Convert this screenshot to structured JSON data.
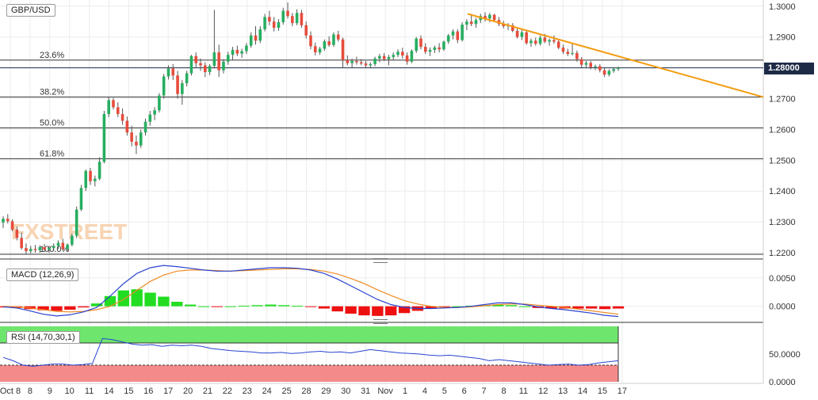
{
  "chart_data": {
    "type": "candlestick",
    "symbol": "GBP/USD",
    "current_price_label": "1.28000",
    "x_labels": [
      "Oct 8",
      "8",
      "9",
      "10",
      "11",
      "14",
      "15",
      "16",
      "17",
      "20",
      "21",
      "22",
      "23",
      "24",
      "25",
      "28",
      "29",
      "30",
      "31",
      "Nov",
      "1",
      "4",
      "5",
      "6",
      "7",
      "8",
      "11",
      "12",
      "13",
      "14",
      "15",
      "17"
    ],
    "price_axis": {
      "ticks": [
        "1.3000",
        "1.2900",
        "1.2800",
        "1.2700",
        "1.2600",
        "1.2500",
        "1.2400",
        "1.2300",
        "1.2200"
      ],
      "range": [
        1.2182,
        1.302
      ]
    },
    "fibonacci": [
      {
        "label": "23.6%",
        "price": 1.2825
      },
      {
        "label": "38.2%",
        "price": 1.2705
      },
      {
        "label": "50.0%",
        "price": 1.2605
      },
      {
        "label": "61.8%",
        "price": 1.2505
      },
      {
        "label": "100.0%",
        "price": 1.2195
      }
    ],
    "trendline": {
      "start_price": 1.2975,
      "end_price": 1.2705,
      "color": "#f39c12"
    },
    "candles": [
      [
        1.2298,
        1.2318,
        1.228,
        1.231
      ],
      [
        1.231,
        1.2325,
        1.2295,
        1.2302
      ],
      [
        1.2302,
        1.2308,
        1.227,
        1.2275
      ],
      [
        1.2275,
        1.2285,
        1.224,
        1.2248
      ],
      [
        1.2248,
        1.2265,
        1.221,
        1.2215
      ],
      [
        1.2215,
        1.223,
        1.2195,
        1.2205
      ],
      [
        1.2205,
        1.2222,
        1.2198,
        1.2212
      ],
      [
        1.2212,
        1.2225,
        1.22,
        1.2208
      ],
      [
        1.2208,
        1.2224,
        1.22,
        1.2218
      ],
      [
        1.2218,
        1.2228,
        1.2202,
        1.221
      ],
      [
        1.221,
        1.2222,
        1.22,
        1.2215
      ],
      [
        1.2215,
        1.223,
        1.2205,
        1.2222
      ],
      [
        1.2222,
        1.224,
        1.2212,
        1.2232
      ],
      [
        1.2232,
        1.2245,
        1.2205,
        1.2212
      ],
      [
        1.2212,
        1.223,
        1.2204,
        1.2226
      ],
      [
        1.2226,
        1.2262,
        1.222,
        1.2255
      ],
      [
        1.2255,
        1.235,
        1.2248,
        1.234
      ],
      [
        1.234,
        1.242,
        1.2335,
        1.241
      ],
      [
        1.241,
        1.247,
        1.24,
        1.2465
      ],
      [
        1.2465,
        1.2475,
        1.242,
        1.2432
      ],
      [
        1.2432,
        1.245,
        1.2415,
        1.244
      ],
      [
        1.244,
        1.251,
        1.2435,
        1.2495
      ],
      [
        1.2495,
        1.266,
        1.249,
        1.265
      ],
      [
        1.265,
        1.2705,
        1.264,
        1.2695
      ],
      [
        1.2695,
        1.2702,
        1.2665,
        1.2672
      ],
      [
        1.2672,
        1.2688,
        1.264,
        1.265
      ],
      [
        1.265,
        1.2668,
        1.2615,
        1.2628
      ],
      [
        1.2628,
        1.2642,
        1.258,
        1.259
      ],
      [
        1.259,
        1.2612,
        1.2545,
        1.256
      ],
      [
        1.256,
        1.258,
        1.252,
        1.2548
      ],
      [
        1.2548,
        1.26,
        1.254,
        1.259
      ],
      [
        1.259,
        1.2635,
        1.258,
        1.2625
      ],
      [
        1.2625,
        1.266,
        1.2612,
        1.2648
      ],
      [
        1.2648,
        1.2672,
        1.263,
        1.2662
      ],
      [
        1.2662,
        1.2718,
        1.2655,
        1.271
      ],
      [
        1.271,
        1.278,
        1.27,
        1.2772
      ],
      [
        1.2772,
        1.2808,
        1.2762,
        1.2798
      ],
      [
        1.2798,
        1.2812,
        1.276,
        1.2775
      ],
      [
        1.2775,
        1.279,
        1.27,
        1.2715
      ],
      [
        1.2715,
        1.276,
        1.268,
        1.275
      ],
      [
        1.275,
        1.279,
        1.274,
        1.2782
      ],
      [
        1.2782,
        1.2842,
        1.2775,
        1.2838
      ],
      [
        1.2838,
        1.285,
        1.28,
        1.2815
      ],
      [
        1.2815,
        1.283,
        1.279,
        1.2808
      ],
      [
        1.2808,
        1.2818,
        1.277,
        1.2786
      ],
      [
        1.2786,
        1.2812,
        1.2776,
        1.2806
      ],
      [
        1.2806,
        1.2988,
        1.28,
        1.285
      ],
      [
        1.285,
        1.2875,
        1.277,
        1.2792
      ],
      [
        1.2792,
        1.2828,
        1.2782,
        1.282
      ],
      [
        1.282,
        1.2852,
        1.281,
        1.2842
      ],
      [
        1.2842,
        1.2868,
        1.2824,
        1.2858
      ],
      [
        1.2858,
        1.2872,
        1.2838,
        1.2846
      ],
      [
        1.2846,
        1.2862,
        1.2832,
        1.2854
      ],
      [
        1.2854,
        1.288,
        1.2845,
        1.2872
      ],
      [
        1.2872,
        1.2915,
        1.2865,
        1.2905
      ],
      [
        1.2905,
        1.2935,
        1.2875,
        1.2888
      ],
      [
        1.2888,
        1.2935,
        1.288,
        1.2925
      ],
      [
        1.2925,
        1.2975,
        1.2918,
        1.2965
      ],
      [
        1.2965,
        1.2985,
        1.2938,
        1.295
      ],
      [
        1.295,
        1.2965,
        1.2918,
        1.293
      ],
      [
        1.293,
        1.2958,
        1.292,
        1.2948
      ],
      [
        1.2948,
        1.2995,
        1.294,
        1.2985
      ],
      [
        1.2985,
        1.3012,
        1.296,
        1.2968
      ],
      [
        1.2968,
        1.2978,
        1.2935,
        1.2945
      ],
      [
        1.2945,
        1.299,
        1.2938,
        1.2978
      ],
      [
        1.2978,
        1.2988,
        1.293,
        1.2938
      ],
      [
        1.2938,
        1.295,
        1.2895,
        1.2905
      ],
      [
        1.2905,
        1.2918,
        1.286,
        1.287
      ],
      [
        1.287,
        1.2882,
        1.284,
        1.285
      ],
      [
        1.285,
        1.2868,
        1.2842,
        1.2862
      ],
      [
        1.2862,
        1.2892,
        1.2855,
        1.2886
      ],
      [
        1.2886,
        1.2902,
        1.2868,
        1.2874
      ],
      [
        1.2874,
        1.2915,
        1.2868,
        1.2908
      ],
      [
        1.2908,
        1.292,
        1.2885,
        1.2892
      ],
      [
        1.2892,
        1.2898,
        1.28,
        1.2825
      ],
      [
        1.2825,
        1.284,
        1.2808,
        1.2815
      ],
      [
        1.2815,
        1.283,
        1.28,
        1.2822
      ],
      [
        1.2822,
        1.2836,
        1.281,
        1.2818
      ],
      [
        1.2818,
        1.2828,
        1.2808,
        1.2814
      ],
      [
        1.2814,
        1.2822,
        1.28,
        1.2808
      ],
      [
        1.2808,
        1.2818,
        1.2798,
        1.2812
      ],
      [
        1.2812,
        1.2836,
        1.2805,
        1.283
      ],
      [
        1.283,
        1.2845,
        1.2818,
        1.2838
      ],
      [
        1.2838,
        1.2848,
        1.2822,
        1.2828
      ],
      [
        1.2828,
        1.2842,
        1.2808,
        1.2835
      ],
      [
        1.2835,
        1.285,
        1.2825,
        1.2842
      ],
      [
        1.2842,
        1.286,
        1.2835,
        1.2852
      ],
      [
        1.2852,
        1.2865,
        1.283,
        1.284
      ],
      [
        1.284,
        1.285,
        1.281,
        1.282
      ],
      [
        1.282,
        1.286,
        1.2815,
        1.2855
      ],
      [
        1.2855,
        1.29,
        1.2848,
        1.2895
      ],
      [
        1.2895,
        1.2905,
        1.286,
        1.2868
      ],
      [
        1.2868,
        1.288,
        1.2845,
        1.2852
      ],
      [
        1.2852,
        1.2866,
        1.2838,
        1.2858
      ],
      [
        1.2858,
        1.2872,
        1.2848,
        1.2866
      ],
      [
        1.2866,
        1.288,
        1.285,
        1.286
      ],
      [
        1.286,
        1.2888,
        1.2855,
        1.2885
      ],
      [
        1.2885,
        1.291,
        1.2878,
        1.2905
      ],
      [
        1.2905,
        1.2925,
        1.2892,
        1.2918
      ],
      [
        1.2918,
        1.2925,
        1.288,
        1.289
      ],
      [
        1.289,
        1.2948,
        1.2885,
        1.294
      ],
      [
        1.294,
        1.2958,
        1.2922,
        1.295
      ],
      [
        1.295,
        1.2975,
        1.2935,
        1.2942
      ],
      [
        1.2942,
        1.2962,
        1.293,
        1.2955
      ],
      [
        1.2955,
        1.2975,
        1.2945,
        1.2968
      ],
      [
        1.2968,
        1.298,
        1.295,
        1.296
      ],
      [
        1.296,
        1.2978,
        1.2948,
        1.2972
      ],
      [
        1.2972,
        1.2975,
        1.2948,
        1.2955
      ],
      [
        1.2955,
        1.2965,
        1.2935,
        1.2942
      ],
      [
        1.2942,
        1.2952,
        1.2928,
        1.2935
      ],
      [
        1.2935,
        1.2945,
        1.2922,
        1.2938
      ],
      [
        1.2938,
        1.2945,
        1.2915,
        1.292
      ],
      [
        1.292,
        1.293,
        1.2895,
        1.29
      ],
      [
        1.29,
        1.2925,
        1.289,
        1.2915
      ],
      [
        1.2915,
        1.292,
        1.2875,
        1.288
      ],
      [
        1.288,
        1.2895,
        1.2868,
        1.2888
      ],
      [
        1.2888,
        1.2898,
        1.2872,
        1.2878
      ],
      [
        1.2878,
        1.2905,
        1.2872,
        1.2898
      ],
      [
        1.2898,
        1.291,
        1.288,
        1.2885
      ],
      [
        1.2885,
        1.2895,
        1.2872,
        1.289
      ],
      [
        1.289,
        1.2905,
        1.2878,
        1.2885
      ],
      [
        1.2885,
        1.2892,
        1.286,
        1.2865
      ],
      [
        1.2865,
        1.2875,
        1.2845,
        1.2852
      ],
      [
        1.2852,
        1.2862,
        1.2838,
        1.2845
      ],
      [
        1.2845,
        1.288,
        1.284,
        1.2848
      ],
      [
        1.2848,
        1.2856,
        1.282,
        1.2828
      ],
      [
        1.2828,
        1.2835,
        1.28,
        1.281
      ],
      [
        1.281,
        1.2822,
        1.2798,
        1.2816
      ],
      [
        1.2816,
        1.2822,
        1.2795,
        1.2802
      ],
      [
        1.2802,
        1.281,
        1.2792,
        1.2805
      ],
      [
        1.2805,
        1.2812,
        1.2785,
        1.2792
      ],
      [
        1.2792,
        1.28,
        1.277,
        1.2778
      ],
      [
        1.2778,
        1.2795,
        1.2772,
        1.279
      ],
      [
        1.279,
        1.28,
        1.2784,
        1.2796
      ],
      [
        1.2796,
        1.2804,
        1.279,
        1.28
      ]
    ],
    "macd": {
      "label": "MACD (12,26,9)",
      "ticks": [
        "0.0050",
        "0.0000"
      ],
      "range": [
        -0.002,
        0.0075
      ],
      "macd_line": [
        -0.0001,
        -0.0003,
        -0.0008,
        -0.0014,
        -0.0017,
        -0.0015,
        -0.001,
        -0.0002,
        0.0018,
        0.004,
        0.0058,
        0.0068,
        0.0072,
        0.007,
        0.0067,
        0.0064,
        0.0062,
        0.0062,
        0.0064,
        0.0066,
        0.0068,
        0.0068,
        0.0067,
        0.0064,
        0.0058,
        0.0048,
        0.0036,
        0.0024,
        0.0012,
        0.0003,
        -0.0002,
        -0.0004,
        -0.0004,
        -0.0003,
        -0.0002,
        0.0,
        0.0003,
        0.0006,
        0.0006,
        0.0003,
        -0.0001,
        -0.0004,
        -0.0006,
        -0.0009,
        -0.0012,
        -0.0016,
        -0.0018
      ],
      "signal_line": [
        0.0,
        -0.0001,
        -0.0003,
        -0.0006,
        -0.0009,
        -0.001,
        -0.0009,
        -0.0006,
        0.0,
        0.0012,
        0.0028,
        0.0044,
        0.0055,
        0.0062,
        0.0064,
        0.0064,
        0.0063,
        0.0062,
        0.0063,
        0.0064,
        0.0065,
        0.0066,
        0.0066,
        0.0065,
        0.0062,
        0.0057,
        0.0049,
        0.004,
        0.0029,
        0.0019,
        0.001,
        0.0004,
        0.0,
        -0.0002,
        -0.0002,
        -0.0001,
        0.0001,
        0.0003,
        0.0004,
        0.0004,
        0.0002,
        0.0,
        -0.0002,
        -0.0005,
        -0.0008,
        -0.0011,
        -0.0014
      ],
      "histogram": [
        -0.0002,
        -0.0003,
        -0.0005,
        -0.0007,
        -0.0008,
        -0.0006,
        -0.0002,
        0.0005,
        0.0018,
        0.0028,
        0.003,
        0.0024,
        0.0017,
        0.0008,
        0.0003,
        0.0,
        -0.0001,
        0.0,
        0.0001,
        0.0002,
        0.0003,
        0.0002,
        0.0001,
        -0.0001,
        -0.0004,
        -0.0009,
        -0.0013,
        -0.0016,
        -0.0017,
        -0.0016,
        -0.0012,
        -0.0008,
        -0.0004,
        -0.0001,
        0.0,
        0.0001,
        0.0002,
        0.0003,
        0.0002,
        0.0,
        -0.0003,
        -0.0004,
        -0.0004,
        -0.0004,
        -0.0004,
        -0.0005,
        -0.0004
      ]
    },
    "rsi": {
      "label": "RSI (14,70,30,1)",
      "ticks": [
        "50.0000",
        "0.0000"
      ],
      "range": [
        0,
        100
      ],
      "overbought": 70,
      "oversold": 30,
      "values": [
        44,
        38,
        30,
        28,
        30,
        32,
        32,
        30,
        31,
        33,
        78,
        76,
        72,
        68,
        66,
        67,
        64,
        66,
        65,
        66,
        64,
        60,
        58,
        56,
        55,
        54,
        52,
        52,
        53,
        51,
        52,
        54,
        55,
        53,
        54,
        52,
        55,
        58,
        56,
        54,
        52,
        51,
        50,
        48,
        47,
        48,
        46,
        44,
        42,
        38,
        40,
        38,
        36,
        34,
        32,
        30,
        31,
        32,
        30,
        31,
        34,
        36,
        38
      ]
    },
    "colors": {
      "up": "#27ae60",
      "down": "#e74c3c",
      "macd": "#2a43d0",
      "signal": "#f08a24",
      "hist_up": "#22dd22",
      "hist_down": "#ee1111",
      "rsi": "#2a43d0",
      "ob_zone": "#6ee66e",
      "os_zone": "#f48a8a",
      "trend": "#f39c12"
    },
    "watermark": "FXSTREET"
  }
}
